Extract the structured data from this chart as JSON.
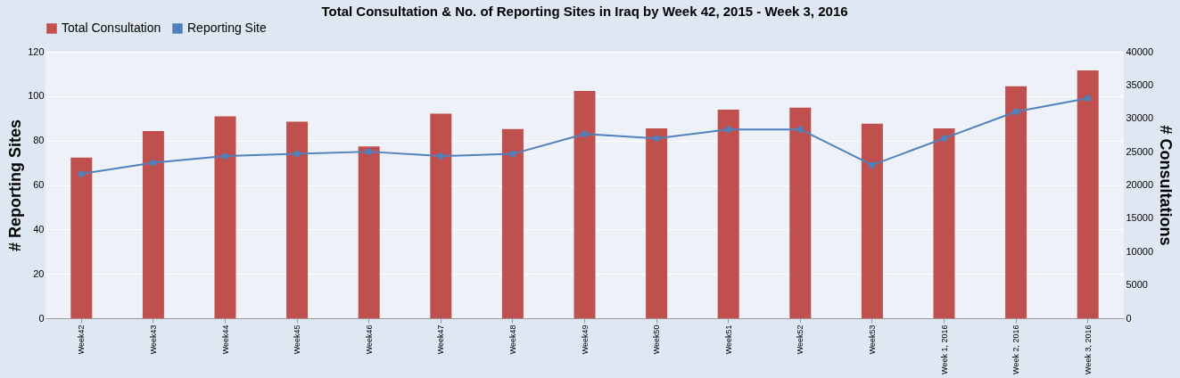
{
  "chart_data": {
    "type": "bar",
    "title": "Total Consultation & No. of Reporting Sites in Iraq by Week 42, 2015 - Week 3, 2016",
    "ylabel": "# Reporting Sites",
    "y2label": "# Consultations",
    "categories": [
      "Week42",
      "Week43",
      "Week44",
      "Week45",
      "Week46",
      "Week47",
      "Week48",
      "Week49",
      "Week50",
      "Week51",
      "Week52",
      "Week53",
      "Week 1, 2016",
      "Week 2, 2016",
      "Week 3, 2016"
    ],
    "series": [
      {
        "name": "Total Consultation",
        "axis": "y2",
        "color": "#c0504d",
        "values": [
          24100,
          28100,
          30300,
          29500,
          25800,
          30700,
          28400,
          34100,
          28500,
          31300,
          31600,
          29200,
          28500,
          34800,
          37200
        ]
      },
      {
        "name": "Reporting Site",
        "type": "line",
        "color": "#4f81bd",
        "marker": "circle",
        "values": [
          65,
          70,
          73,
          74,
          75,
          73,
          74,
          83,
          81,
          85,
          85,
          69,
          81,
          93,
          99
        ]
      }
    ],
    "ylim": [
      0,
      120
    ],
    "yticks": [
      0,
      20,
      40,
      60,
      80,
      100,
      120
    ],
    "y2lim": [
      0,
      40000
    ],
    "y2ticks": [
      0,
      5000,
      10000,
      15000,
      20000,
      25000,
      30000,
      35000,
      40000
    ],
    "grid": "y",
    "legend": "top"
  }
}
